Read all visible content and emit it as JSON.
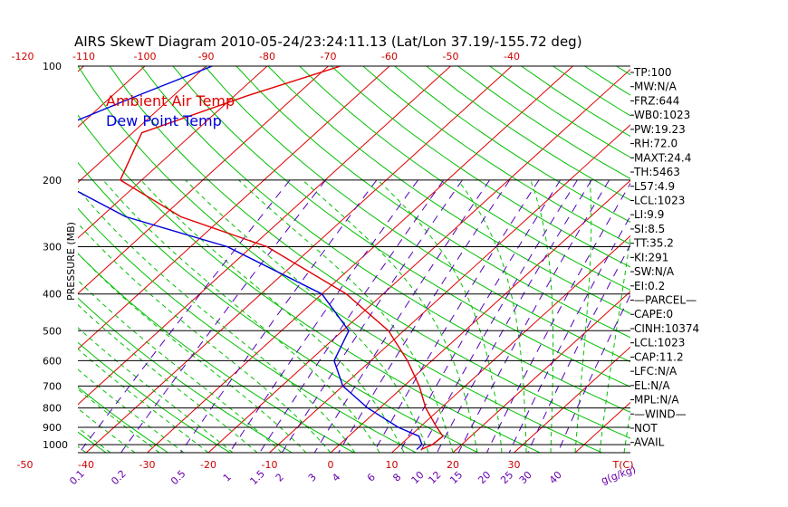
{
  "chart_data": {
    "type": "line",
    "title": "AIRS SkewT Diagram 2010-05-24/23:24:11.13 (Lat/Lon 37.19/-155.72 deg)",
    "ylabel": "PRESSURE (MB)",
    "xlabel": "T(C)",
    "mixing_ratio_label": "g(g/kg)",
    "legend": [
      "Ambient Air Temp",
      "Dew Point Temp"
    ],
    "legend_placement": "top-left",
    "pressure_ticks": [
      "100",
      "200",
      "300",
      "400",
      "500",
      "600",
      "700",
      "800",
      "900",
      "1000"
    ],
    "bottom_temp_ticks": [
      "-50",
      "-40",
      "-30",
      "-20",
      "-10",
      "0",
      "10",
      "20",
      "30"
    ],
    "top_temp_ticks": [
      "-120",
      "-110",
      "-100",
      "-90",
      "-80",
      "-70",
      "-60",
      "-50",
      "-40"
    ],
    "mixing_ratio_ticks": [
      "0.1",
      "0.2",
      "0.5",
      "1",
      "1.5",
      "2",
      "3",
      "4",
      "6",
      "8",
      "10",
      "12",
      "15",
      "20",
      "25",
      "30",
      "40"
    ],
    "ylim": [
      1050,
      100
    ],
    "series": [
      {
        "name": "Ambient Air Temp",
        "color": "#e00000",
        "points": [
          [
            100,
            -68.0
          ],
          [
            120,
            -78.0
          ],
          [
            150,
            -88.5
          ],
          [
            200,
            -83.5
          ],
          [
            250,
            -67.0
          ],
          [
            300,
            -47.5
          ],
          [
            400,
            -26.0
          ],
          [
            500,
            -12.5
          ],
          [
            600,
            -4.0
          ],
          [
            700,
            2.5
          ],
          [
            800,
            7.5
          ],
          [
            900,
            12.8
          ],
          [
            950,
            15.4
          ],
          [
            1000,
            15.2
          ],
          [
            1030,
            14.2
          ]
        ]
      },
      {
        "name": "Dew Point Temp",
        "color": "#0000dd",
        "points": [
          [
            100,
            -89.0
          ],
          [
            120,
            -96.0
          ],
          [
            150,
            -104.0
          ],
          [
            200,
            -94.0
          ],
          [
            250,
            -76.0
          ],
          [
            300,
            -54.0
          ],
          [
            400,
            -30.0
          ],
          [
            500,
            -19.0
          ],
          [
            600,
            -16.0
          ],
          [
            700,
            -10.0
          ],
          [
            800,
            -2.0
          ],
          [
            900,
            6.5
          ],
          [
            950,
            11.5
          ],
          [
            1000,
            13.5
          ],
          [
            1030,
            13.5
          ]
        ]
      }
    ],
    "indices": [
      "TP:100",
      "MW:N/A",
      "FRZ:644",
      "WB0:1023",
      "PW:19.23",
      "RH:72.0",
      "MAXT:24.4",
      "TH:5463",
      "L57:4.9",
      "LCL:1023",
      "LI:9.9",
      "SI:8.5",
      "TT:35.2",
      "KI:291",
      "SW:N/A",
      "EI:0.2",
      "—PARCEL—",
      "CAPE:0",
      "CINH:10374",
      "LCL:1023",
      "CAP:11.2",
      "LFC:N/A",
      "EL:N/A",
      "MPL:N/A",
      "—WIND—",
      "NOT",
      "AVAIL"
    ],
    "colors": {
      "isotherm": "#e00000",
      "dry_adiabat": "#00c000",
      "moist_adiabat": "#00c000",
      "mixing_ratio": "#5500bb",
      "isobar": "#000000",
      "tick_temp": "#cc0000",
      "tick_mixing": "#6600aa"
    }
  }
}
